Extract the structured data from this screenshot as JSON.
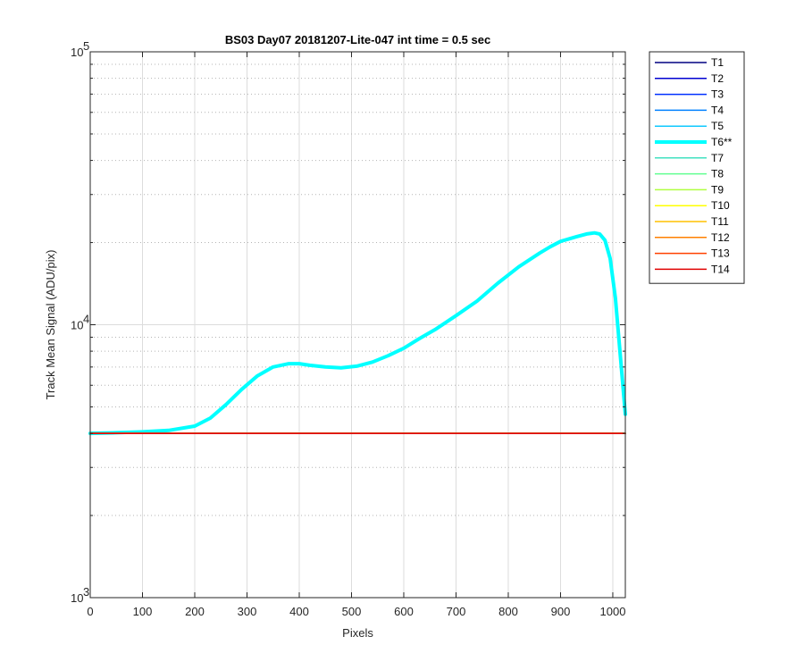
{
  "chart_data": {
    "type": "line",
    "title": "BS03 Day07 20181207-Lite-047 int time = 0.5 sec",
    "xlabel": "Pixels",
    "ylabel": "Track Mean Signal (ADU/pix)",
    "xlim": [
      0,
      1024
    ],
    "ylim": [
      1000,
      100000
    ],
    "yscale": "log",
    "xticks": [
      0,
      100,
      200,
      300,
      400,
      500,
      600,
      700,
      800,
      900,
      1000
    ],
    "xtick_labels": [
      "0",
      "100",
      "200",
      "300",
      "400",
      "500",
      "600",
      "700",
      "800",
      "900",
      "1000"
    ],
    "yticks": [
      1000,
      10000,
      100000
    ],
    "ytick_labels": [
      {
        "base": "10",
        "exp": "3"
      },
      {
        "base": "10",
        "exp": "4"
      },
      {
        "base": "10",
        "exp": "5"
      }
    ],
    "grid": true,
    "legend_position": "outside-right",
    "series": [
      {
        "name": "T1",
        "color": "#000080",
        "highlight": false,
        "x": [
          0,
          1024
        ],
        "y": [
          4000,
          4000
        ]
      },
      {
        "name": "T2",
        "color": "#0000d0",
        "highlight": false,
        "x": [
          0,
          1024
        ],
        "y": [
          4000,
          4000
        ]
      },
      {
        "name": "T3",
        "color": "#0030ff",
        "highlight": false,
        "x": [
          0,
          1024
        ],
        "y": [
          4000,
          4000
        ]
      },
      {
        "name": "T4",
        "color": "#0080ff",
        "highlight": false,
        "x": [
          0,
          1024
        ],
        "y": [
          4000,
          4000
        ]
      },
      {
        "name": "T5",
        "color": "#10c8ff",
        "highlight": false,
        "x": [
          0,
          1024
        ],
        "y": [
          4000,
          4000
        ]
      },
      {
        "name": "T6**",
        "color": "#00ffff",
        "highlight": true,
        "x": [
          0,
          50,
          100,
          150,
          200,
          230,
          260,
          290,
          320,
          350,
          380,
          400,
          420,
          450,
          480,
          510,
          540,
          570,
          600,
          630,
          660,
          700,
          740,
          780,
          820,
          860,
          880,
          900,
          930,
          950,
          965,
          975,
          985,
          995,
          1005,
          1015,
          1024
        ],
        "y": [
          4000,
          4020,
          4050,
          4100,
          4250,
          4550,
          5100,
          5800,
          6500,
          7000,
          7200,
          7200,
          7100,
          7000,
          6950,
          7050,
          7300,
          7700,
          8200,
          8900,
          9600,
          10800,
          12200,
          14200,
          16300,
          18300,
          19300,
          20200,
          21000,
          21500,
          21700,
          21500,
          20400,
          17500,
          12500,
          7500,
          4700
        ]
      },
      {
        "name": "T7",
        "color": "#40e0c0",
        "highlight": false,
        "x": [
          0,
          1024
        ],
        "y": [
          4000,
          4000
        ]
      },
      {
        "name": "T8",
        "color": "#60ff90",
        "highlight": false,
        "x": [
          0,
          1024
        ],
        "y": [
          4000,
          4000
        ]
      },
      {
        "name": "T9",
        "color": "#b0ff40",
        "highlight": false,
        "x": [
          0,
          1024
        ],
        "y": [
          4000,
          4000
        ]
      },
      {
        "name": "T10",
        "color": "#ffff00",
        "highlight": false,
        "x": [
          0,
          1024
        ],
        "y": [
          4000,
          4000
        ]
      },
      {
        "name": "T11",
        "color": "#ffc000",
        "highlight": false,
        "x": [
          0,
          1024
        ],
        "y": [
          4000,
          4000
        ]
      },
      {
        "name": "T12",
        "color": "#ff8000",
        "highlight": false,
        "x": [
          0,
          1024
        ],
        "y": [
          4000,
          4000
        ]
      },
      {
        "name": "T13",
        "color": "#ff4000",
        "highlight": false,
        "x": [
          0,
          1024
        ],
        "y": [
          4000,
          4000
        ]
      },
      {
        "name": "T14",
        "color": "#e00000",
        "highlight": false,
        "x": [
          0,
          1024
        ],
        "y": [
          4000,
          4000
        ]
      }
    ]
  }
}
